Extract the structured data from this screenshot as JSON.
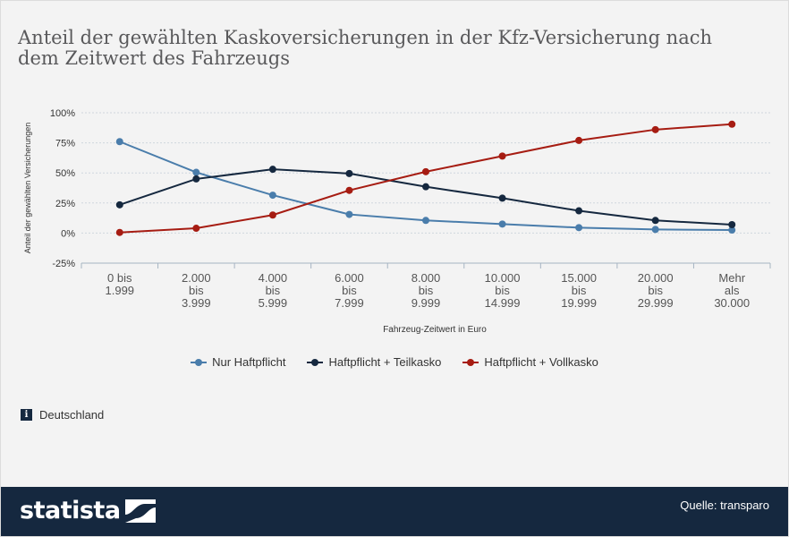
{
  "chart": {
    "title": "Anteil der gewählten Kaskoversicherungen in der Kfz-Versicherung nach dem Zeitwert des Fahrzeugs"
  },
  "region": {
    "icon": "info-icon",
    "icon_glyph": "i",
    "label": "Deutschland"
  },
  "footer": {
    "brand": "statista",
    "source": "Quelle: transparo"
  },
  "colors": {
    "background": "#f3f3f3",
    "footer": "#15283f",
    "title": "#59595b",
    "grid": "#cfd6de",
    "axis": "#a6b4c2"
  },
  "chart_data": {
    "type": "line",
    "title": "Anteil der gewählten Kaskoversicherungen in der Kfz-Versicherung nach dem Zeitwert des Fahrzeugs",
    "xlabel": "Fahrzeug-Zeitwert in Euro",
    "ylabel": "Anteil der gewählten Versicherungen",
    "categories": [
      [
        "0 bis",
        "1.999"
      ],
      [
        "2.000",
        "bis",
        "3.999"
      ],
      [
        "4.000",
        "bis",
        "5.999"
      ],
      [
        "6.000",
        "bis",
        "7.999"
      ],
      [
        "8.000",
        "bis",
        "9.999"
      ],
      [
        "10.000",
        "bis",
        "14.999"
      ],
      [
        "15.000",
        "bis",
        "19.999"
      ],
      [
        "20.000",
        "bis",
        "29.999"
      ],
      [
        "Mehr",
        "als",
        "30.000"
      ]
    ],
    "ylim": [
      -25,
      100
    ],
    "yticks": [
      -25,
      0,
      25,
      50,
      75,
      100
    ],
    "ytick_labels": [
      "-25%",
      "0%",
      "25%",
      "50%",
      "75%",
      "100%"
    ],
    "grid": true,
    "legend_position": "bottom",
    "series": [
      {
        "name": "Nur Haftpflicht",
        "color": "#4a7dab",
        "values": [
          76,
          50.5,
          31.5,
          15.5,
          10.5,
          7.5,
          4.5,
          3,
          2.5
        ]
      },
      {
        "name": "Haftpflicht + Teilkasko",
        "color": "#15283f",
        "values": [
          23.5,
          45,
          53,
          49.5,
          38.5,
          29,
          18.5,
          10.5,
          7
        ]
      },
      {
        "name": "Haftpflicht + Vollkasko",
        "color": "#a61c12",
        "values": [
          0.5,
          4,
          15,
          35.5,
          51,
          64,
          77,
          86,
          90.5
        ]
      }
    ]
  }
}
